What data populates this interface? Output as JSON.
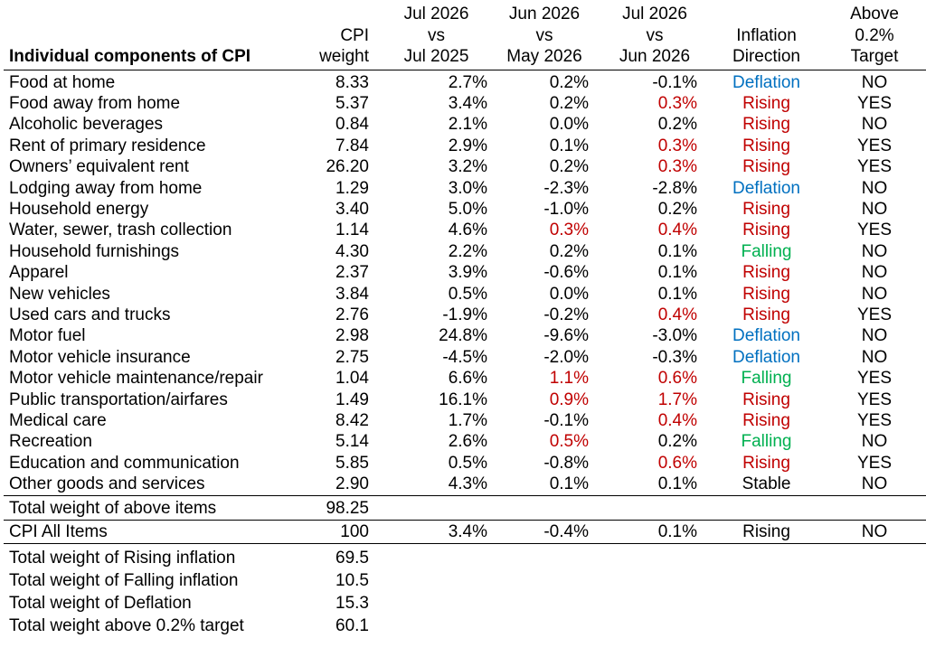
{
  "header": {
    "title": "Individual components of CPI",
    "weight": [
      "CPI",
      "weight"
    ],
    "yoy": [
      "Jul 2026",
      "vs",
      "Jul 2025"
    ],
    "prev_mom": [
      "Jun 2026",
      "vs",
      "May 2026"
    ],
    "mom": [
      "Jul 2026",
      "vs",
      "Jun 2026"
    ],
    "direction": [
      "Inflation",
      "Direction"
    ],
    "above": [
      "Above",
      "0.2%",
      "Target"
    ]
  },
  "colors": {
    "rising": "#c00000",
    "deflation": "#0070c0",
    "falling": "#00b050",
    "stable": "#000000",
    "above_target": "#c00000"
  },
  "rows": [
    {
      "name": "Food at home",
      "weight": "8.33",
      "yoy": "2.7%",
      "prev_mom": "0.2%",
      "prev_red": false,
      "mom": "-0.1%",
      "mom_red": false,
      "direction": "Deflation",
      "above": "NO"
    },
    {
      "name": "Food away from home",
      "weight": "5.37",
      "yoy": "3.4%",
      "prev_mom": "0.2%",
      "prev_red": false,
      "mom": "0.3%",
      "mom_red": true,
      "direction": "Rising",
      "above": "YES"
    },
    {
      "name": "Alcoholic beverages",
      "weight": "0.84",
      "yoy": "2.1%",
      "prev_mom": "0.0%",
      "prev_red": false,
      "mom": "0.2%",
      "mom_red": false,
      "direction": "Rising",
      "above": "NO"
    },
    {
      "name": "Rent of primary residence",
      "weight": "7.84",
      "yoy": "2.9%",
      "prev_mom": "0.1%",
      "prev_red": false,
      "mom": "0.3%",
      "mom_red": true,
      "direction": "Rising",
      "above": "YES"
    },
    {
      "name": "Owners’ equivalent rent",
      "weight": "26.20",
      "yoy": "3.2%",
      "prev_mom": "0.2%",
      "prev_red": false,
      "mom": "0.3%",
      "mom_red": true,
      "direction": "Rising",
      "above": "YES"
    },
    {
      "name": "Lodging away from home",
      "weight": "1.29",
      "yoy": "3.0%",
      "prev_mom": "-2.3%",
      "prev_red": false,
      "mom": "-2.8%",
      "mom_red": false,
      "direction": "Deflation",
      "above": "NO"
    },
    {
      "name": "Household energy",
      "weight": "3.40",
      "yoy": "5.0%",
      "prev_mom": "-1.0%",
      "prev_red": false,
      "mom": "0.2%",
      "mom_red": false,
      "direction": "Rising",
      "above": "NO"
    },
    {
      "name": "Water, sewer, trash collection",
      "weight": "1.14",
      "yoy": "4.6%",
      "prev_mom": "0.3%",
      "prev_red": true,
      "mom": "0.4%",
      "mom_red": true,
      "direction": "Rising",
      "above": "YES"
    },
    {
      "name": "Household furnishings",
      "weight": "4.30",
      "yoy": "2.2%",
      "prev_mom": "0.2%",
      "prev_red": false,
      "mom": "0.1%",
      "mom_red": false,
      "direction": "Falling",
      "above": "NO"
    },
    {
      "name": "Apparel",
      "weight": "2.37",
      "yoy": "3.9%",
      "prev_mom": "-0.6%",
      "prev_red": false,
      "mom": "0.1%",
      "mom_red": false,
      "direction": "Rising",
      "above": "NO"
    },
    {
      "name": "New vehicles",
      "weight": "3.84",
      "yoy": "0.5%",
      "prev_mom": "0.0%",
      "prev_red": false,
      "mom": "0.1%",
      "mom_red": false,
      "direction": "Rising",
      "above": "NO"
    },
    {
      "name": "Used cars and trucks",
      "weight": "2.76",
      "yoy": "-1.9%",
      "prev_mom": "-0.2%",
      "prev_red": false,
      "mom": "0.4%",
      "mom_red": true,
      "direction": "Rising",
      "above": "YES"
    },
    {
      "name": "Motor fuel",
      "weight": "2.98",
      "yoy": "24.8%",
      "prev_mom": "-9.6%",
      "prev_red": false,
      "mom": "-3.0%",
      "mom_red": false,
      "direction": "Deflation",
      "above": "NO"
    },
    {
      "name": "Motor vehicle insurance",
      "weight": "2.75",
      "yoy": "-4.5%",
      "prev_mom": "-2.0%",
      "prev_red": false,
      "mom": "-0.3%",
      "mom_red": false,
      "direction": "Deflation",
      "above": "NO"
    },
    {
      "name": "Motor vehicle maintenance/repair",
      "weight": "1.04",
      "yoy": "6.6%",
      "prev_mom": "1.1%",
      "prev_red": true,
      "mom": "0.6%",
      "mom_red": true,
      "direction": "Falling",
      "above": "YES"
    },
    {
      "name": "Public transportation/airfares",
      "weight": "1.49",
      "yoy": "16.1%",
      "prev_mom": "0.9%",
      "prev_red": true,
      "mom": "1.7%",
      "mom_red": true,
      "direction": "Rising",
      "above": "YES"
    },
    {
      "name": "Medical care",
      "weight": "8.42",
      "yoy": "1.7%",
      "prev_mom": "-0.1%",
      "prev_red": false,
      "mom": "0.4%",
      "mom_red": true,
      "direction": "Rising",
      "above": "YES"
    },
    {
      "name": "Recreation",
      "weight": "5.14",
      "yoy": "2.6%",
      "prev_mom": "0.5%",
      "prev_red": true,
      "mom": "0.2%",
      "mom_red": false,
      "direction": "Falling",
      "above": "NO"
    },
    {
      "name": "Education and communication",
      "weight": "5.85",
      "yoy": "0.5%",
      "prev_mom": "-0.8%",
      "prev_red": false,
      "mom": "0.6%",
      "mom_red": true,
      "direction": "Rising",
      "above": "YES"
    },
    {
      "name": "Other goods and services",
      "weight": "2.90",
      "yoy": "4.3%",
      "prev_mom": "0.1%",
      "prev_red": false,
      "mom": "0.1%",
      "mom_red": false,
      "direction": "Stable",
      "above": "NO"
    }
  ],
  "total": {
    "label": "Total weight of above items",
    "weight": "98.25"
  },
  "cpi_all": {
    "name": "CPI All Items",
    "weight": "100",
    "yoy": "3.4%",
    "prev_mom": "-0.4%",
    "mom": "0.1%",
    "direction": "Rising",
    "above": "NO"
  },
  "summary": [
    {
      "label": "Total weight of Rising inflation",
      "value": "69.5"
    },
    {
      "label": "Total weight of Falling inflation",
      "value": "10.5"
    },
    {
      "label": "Total weight of Deflation",
      "value": "15.3"
    },
    {
      "label": "Total weight above 0.2% target",
      "value": "60.1"
    }
  ]
}
